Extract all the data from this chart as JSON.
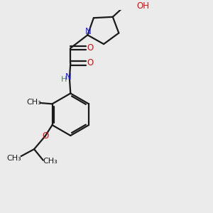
{
  "bg_color": "#ebebeb",
  "bond_color": "#1a1a1a",
  "N_color": "#2020ee",
  "O_color": "#cc1111",
  "H_color": "#5a7a5a",
  "line_width": 1.6,
  "font_size": 8.5,
  "figsize": [
    3.0,
    3.0
  ],
  "dpi": 100,
  "xlim": [
    0,
    10
  ],
  "ylim": [
    0,
    10
  ]
}
